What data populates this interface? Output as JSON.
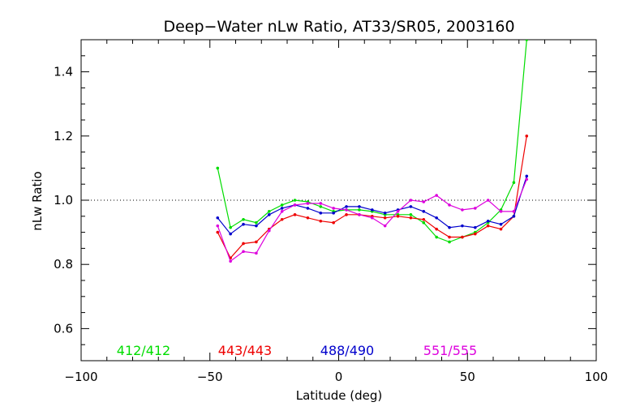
{
  "chart_data": {
    "type": "line",
    "title": "Deep−Water nLw Ratio, AT33/SR05, 2003160",
    "xlabel": "Latitude (deg)",
    "ylabel": "nLw Ratio",
    "xlim": [
      -100,
      100
    ],
    "ylim": [
      0.5,
      1.5
    ],
    "xticks": [
      -100,
      -50,
      0,
      50,
      100
    ],
    "yticks": [
      0.6,
      0.8,
      1.0,
      1.2,
      1.4
    ],
    "xtick_labels": [
      "−100",
      "−50",
      "0",
      "50",
      "100"
    ],
    "ytick_labels": [
      "0.6",
      "0.8",
      "1.0",
      "1.2",
      "1.4"
    ],
    "reference_line": 1.0,
    "grid": false,
    "series": [
      {
        "name": "412/412",
        "color": "#00dd00",
        "x": [
          -47,
          -42,
          -37,
          -32,
          -27,
          -22,
          -17,
          -12,
          -7,
          -2,
          3,
          8,
          13,
          18,
          23,
          28,
          33,
          38,
          43,
          48,
          53,
          58,
          63,
          68,
          73
        ],
        "y": [
          1.1,
          0.915,
          0.94,
          0.93,
          0.965,
          0.985,
          1.0,
          0.995,
          0.98,
          0.965,
          0.97,
          0.97,
          0.965,
          0.955,
          0.955,
          0.955,
          0.93,
          0.885,
          0.87,
          0.885,
          0.9,
          0.93,
          0.97,
          1.055,
          1.5
        ]
      },
      {
        "name": "443/443",
        "color": "#ee0000",
        "x": [
          -47,
          -42,
          -37,
          -32,
          -27,
          -22,
          -17,
          -12,
          -7,
          -2,
          3,
          8,
          13,
          18,
          23,
          28,
          33,
          38,
          43,
          48,
          53,
          58,
          63,
          68,
          73
        ],
        "y": [
          0.9,
          0.82,
          0.865,
          0.87,
          0.91,
          0.94,
          0.955,
          0.945,
          0.935,
          0.93,
          0.955,
          0.955,
          0.95,
          0.945,
          0.95,
          0.945,
          0.94,
          0.91,
          0.885,
          0.885,
          0.895,
          0.92,
          0.91,
          0.95,
          1.2
        ]
      },
      {
        "name": "488/490",
        "color": "#0000cc",
        "x": [
          -47,
          -42,
          -37,
          -32,
          -27,
          -22,
          -17,
          -12,
          -7,
          -2,
          3,
          8,
          13,
          18,
          23,
          28,
          33,
          38,
          43,
          48,
          53,
          58,
          63,
          68,
          73
        ],
        "y": [
          0.945,
          0.895,
          0.925,
          0.92,
          0.955,
          0.975,
          0.985,
          0.975,
          0.96,
          0.96,
          0.98,
          0.98,
          0.97,
          0.96,
          0.97,
          0.98,
          0.965,
          0.945,
          0.915,
          0.92,
          0.915,
          0.935,
          0.925,
          0.95,
          1.075
        ]
      },
      {
        "name": "551/555",
        "color": "#dd00dd",
        "x": [
          -47,
          -42,
          -37,
          -32,
          -27,
          -22,
          -17,
          -12,
          -7,
          -2,
          3,
          8,
          13,
          18,
          23,
          28,
          33,
          38,
          43,
          48,
          53,
          58,
          63,
          68,
          73
        ],
        "y": [
          0.92,
          0.81,
          0.84,
          0.835,
          0.905,
          0.965,
          0.985,
          0.99,
          0.99,
          0.975,
          0.97,
          0.955,
          0.945,
          0.92,
          0.965,
          1.0,
          0.995,
          1.015,
          0.985,
          0.97,
          0.975,
          1.0,
          0.965,
          0.965,
          1.065
        ]
      }
    ],
    "legend": "bottom, inside plot, horizontal row of colored text"
  }
}
